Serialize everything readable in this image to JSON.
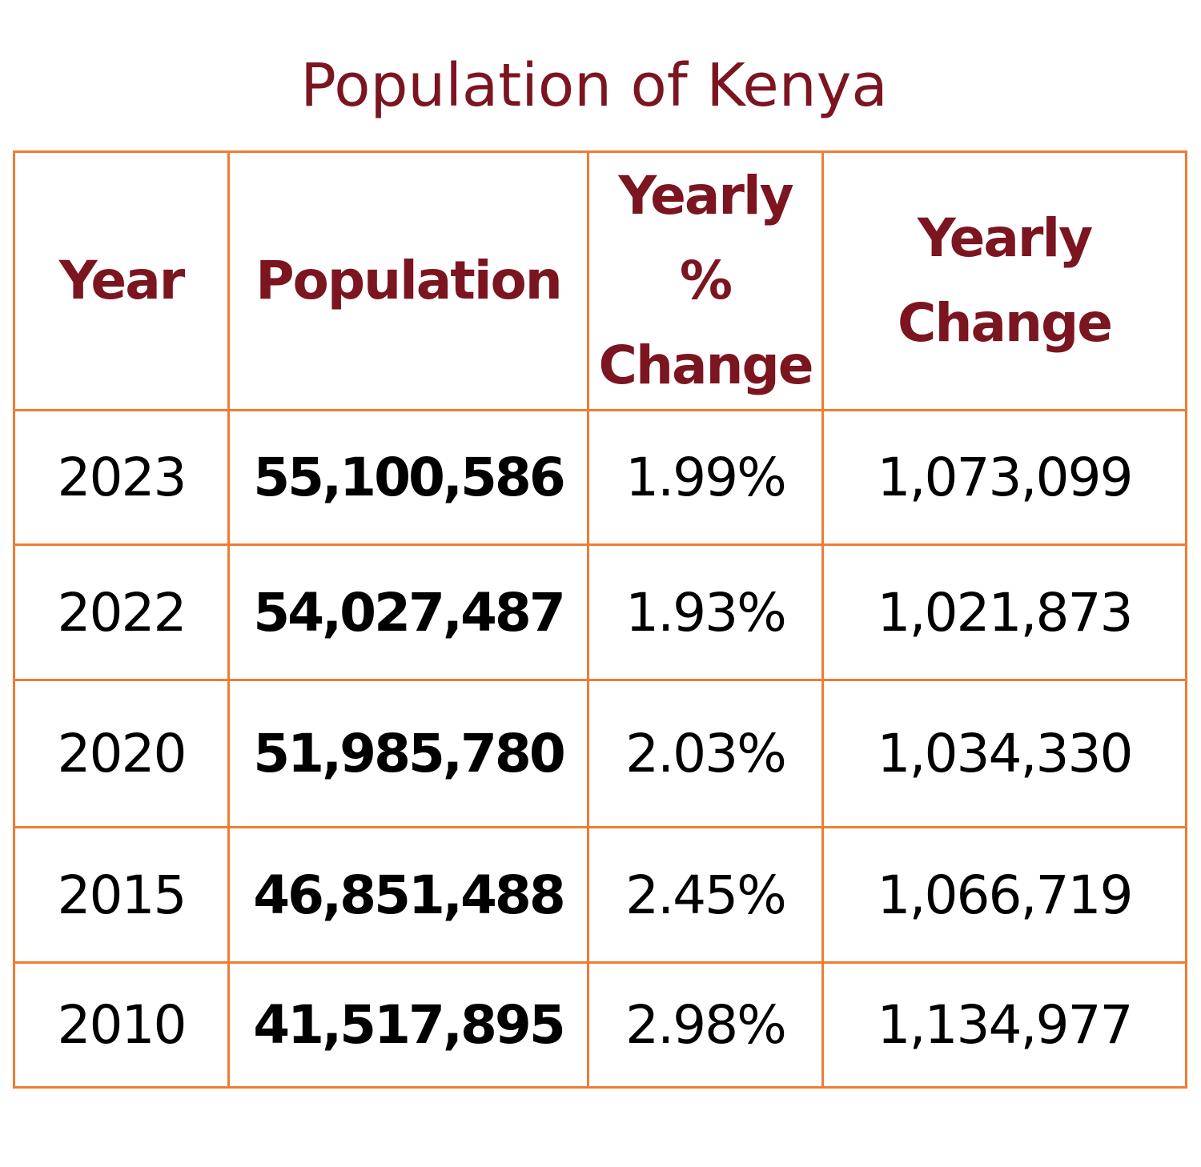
{
  "title": "Population of Kenya",
  "colors": {
    "title": "#7b1520",
    "header_text": "#7b1520",
    "grid": "#ed7d31",
    "cell_text": "#000000"
  },
  "table": {
    "headers": [
      {
        "lines": [
          "Year"
        ]
      },
      {
        "lines": [
          "Population"
        ]
      },
      {
        "lines": [
          "Yearly",
          "%",
          "Change"
        ]
      },
      {
        "lines": [
          "Yearly",
          "Change"
        ]
      }
    ],
    "rows": [
      {
        "year": "2023",
        "population": "55,100,586",
        "yearly_pct_change": "1.99%",
        "yearly_change": "1,073,099"
      },
      {
        "year": "2022",
        "population": "54,027,487",
        "yearly_pct_change": "1.93%",
        "yearly_change": "1,021,873"
      },
      {
        "year": "2020",
        "population": "51,985,780",
        "yearly_pct_change": "2.03%",
        "yearly_change": "1,034,330"
      },
      {
        "year": "2015",
        "population": "46,851,488",
        "yearly_pct_change": "2.45%",
        "yearly_change": "1,066,719"
      },
      {
        "year": "2010",
        "population": "41,517,895",
        "yearly_pct_change": "2.98%",
        "yearly_change": "1,134,977"
      }
    ]
  }
}
